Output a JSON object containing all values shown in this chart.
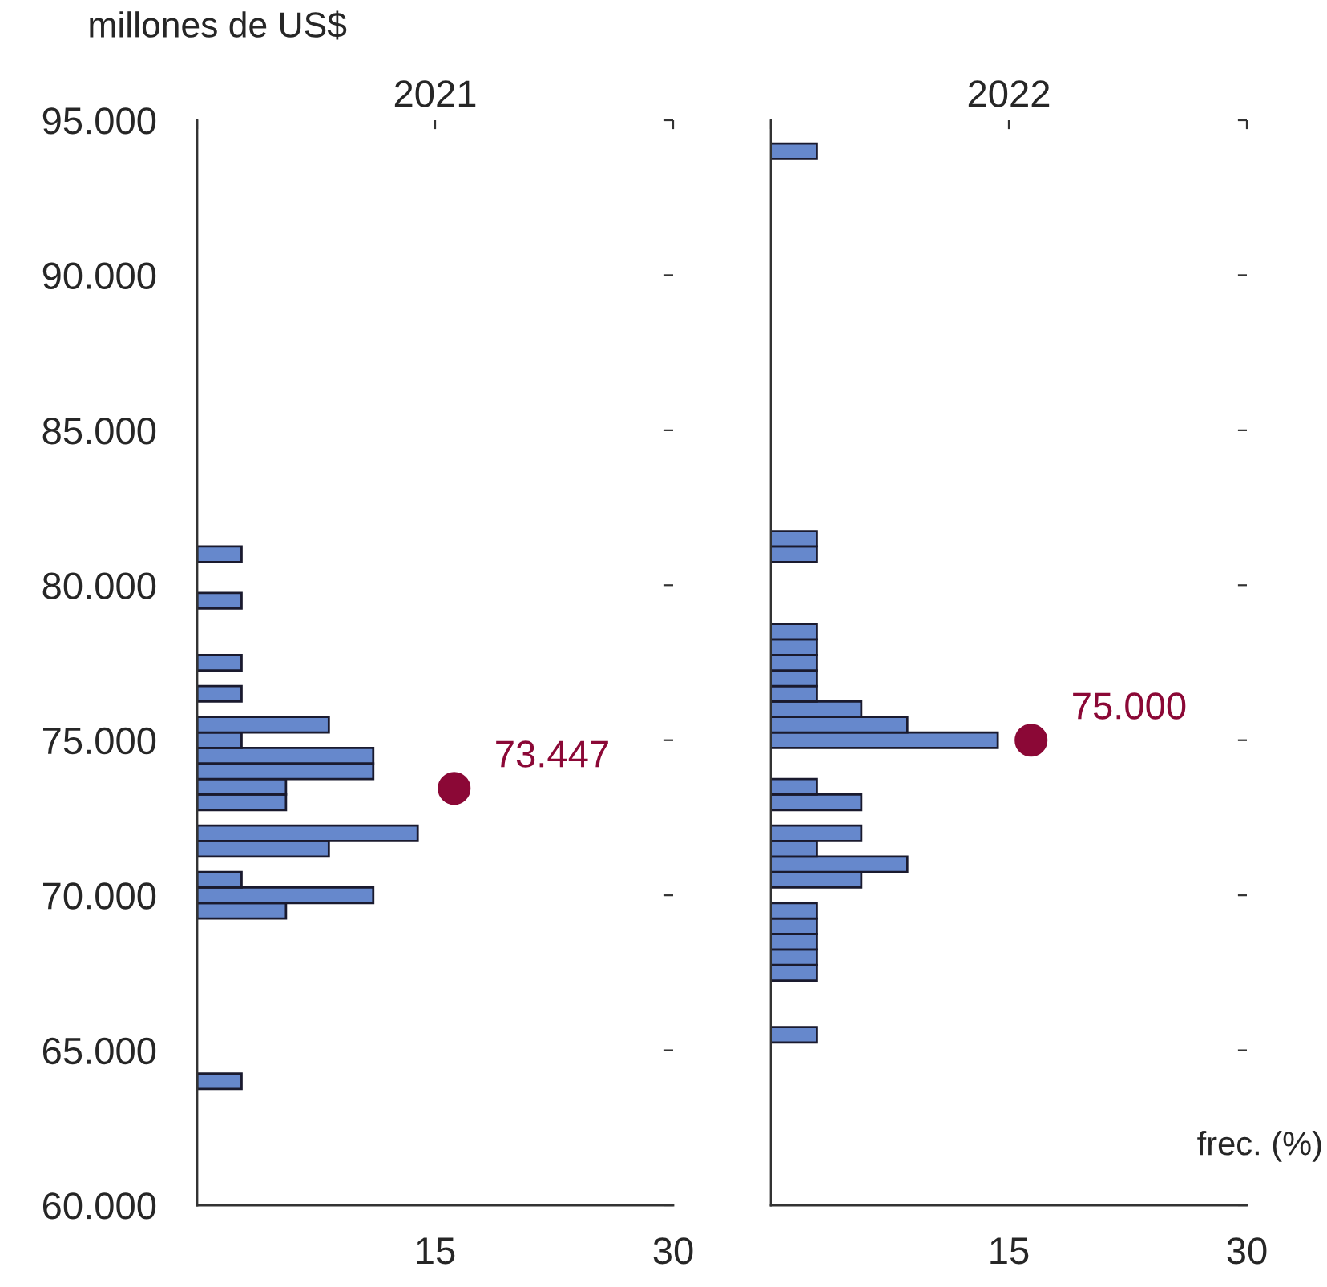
{
  "chart_data": [
    {
      "type": "histogram",
      "orientation": "horizontal",
      "title": "2021",
      "ylabel": "millones de US$",
      "bins": [
        63750,
        64250,
        64750,
        65250,
        65750,
        66250,
        66750,
        67250,
        67750,
        68250,
        68750,
        69250,
        69750,
        70250,
        70750,
        71250,
        71750,
        72250,
        72750,
        73250,
        73750,
        74250,
        74750,
        75250,
        75750,
        76250,
        76750,
        77250,
        77750,
        78250,
        78750,
        79250,
        79750,
        80250,
        80750,
        81250
      ],
      "color": "#6688cc",
      "values": [
        2.8,
        0,
        0,
        0,
        0,
        0,
        0,
        0,
        0,
        0,
        0,
        5.6,
        11.1,
        2.8,
        0,
        8.3,
        13.9,
        0,
        5.6,
        5.6,
        11.1,
        11.1,
        2.8,
        8.3,
        0,
        2.8,
        0,
        2.8,
        0,
        0,
        0,
        2.8,
        0,
        0,
        2.8
      ],
      "series": [
        {
          "type": "scatter",
          "color": "#8b0836",
          "x": [
            73447
          ],
          "values": [
            16.2
          ]
        }
      ],
      "annotations": [
        {
          "text": "73.447",
          "x": 16.2,
          "y": 73447
        }
      ],
      "xlim": [
        0,
        30
      ],
      "xticks": [
        {
          "value": 0,
          "label": null
        },
        15,
        30
      ],
      "ylim": [
        60000,
        95000
      ],
      "yticks": [
        {
          "value": 60000,
          "label": "60.000"
        },
        {
          "value": 65000,
          "label": "65.000"
        },
        {
          "value": 70000,
          "label": "70.000"
        },
        {
          "value": 75000,
          "label": "75.000"
        },
        {
          "value": 80000,
          "label": "80.000"
        },
        {
          "value": 85000,
          "label": "85.000"
        },
        {
          "value": 90000,
          "label": "90.000"
        },
        {
          "value": 95000,
          "label": "95.000"
        }
      ],
      "grid": false,
      "legend": false
    },
    {
      "type": "histogram",
      "orientation": "horizontal",
      "title": "2022",
      "xlabel": "frec. (%)",
      "bins": [
        65250,
        65750,
        66250,
        66750,
        67250,
        67750,
        68250,
        68750,
        69250,
        69750,
        70250,
        70750,
        71250,
        71750,
        72250,
        72750,
        73250,
        73750,
        74250,
        74750,
        75250,
        75750,
        76250,
        76750,
        77250,
        77750,
        78250,
        78750,
        79250,
        79750,
        80250,
        80750,
        81250,
        81750,
        82250,
        82750,
        83250,
        83750,
        84250,
        84750,
        85250,
        85750,
        86250,
        86750,
        87250,
        87750,
        88250,
        88750,
        89250,
        89750,
        90250,
        90750,
        91250,
        91750,
        92250,
        92750,
        93250,
        93750,
        94250
      ],
      "color": "#6688cc",
      "values": [
        2.9,
        0,
        0,
        0,
        2.9,
        2.9,
        2.9,
        2.9,
        2.9,
        0,
        5.7,
        8.6,
        2.9,
        5.7,
        0,
        5.7,
        2.9,
        0,
        0,
        14.3,
        8.6,
        5.7,
        2.9,
        2.9,
        2.9,
        2.9,
        2.9,
        0,
        0,
        0,
        0,
        2.9,
        2.9,
        0,
        0,
        0,
        0,
        0,
        0,
        0,
        0,
        0,
        0,
        0,
        0,
        0,
        0,
        0,
        0,
        0,
        0,
        0,
        0,
        0,
        0,
        0,
        0,
        2.9
      ],
      "series": [
        {
          "type": "scatter",
          "color": "#8b0836",
          "x": [
            75000
          ],
          "values": [
            16.4
          ]
        }
      ],
      "annotations": [
        {
          "text": "75.000",
          "x": 16.4,
          "y": 75000
        }
      ],
      "xlim": [
        0,
        30
      ],
      "xticks": [
        {
          "value": 0,
          "label": null
        },
        15,
        30
      ],
      "ylim": [
        60000,
        95000
      ],
      "yticks": [
        60000,
        65000,
        70000,
        75000,
        80000,
        85000,
        90000,
        95000
      ],
      "tick_labels": "x",
      "grid": false,
      "legend": false
    }
  ]
}
